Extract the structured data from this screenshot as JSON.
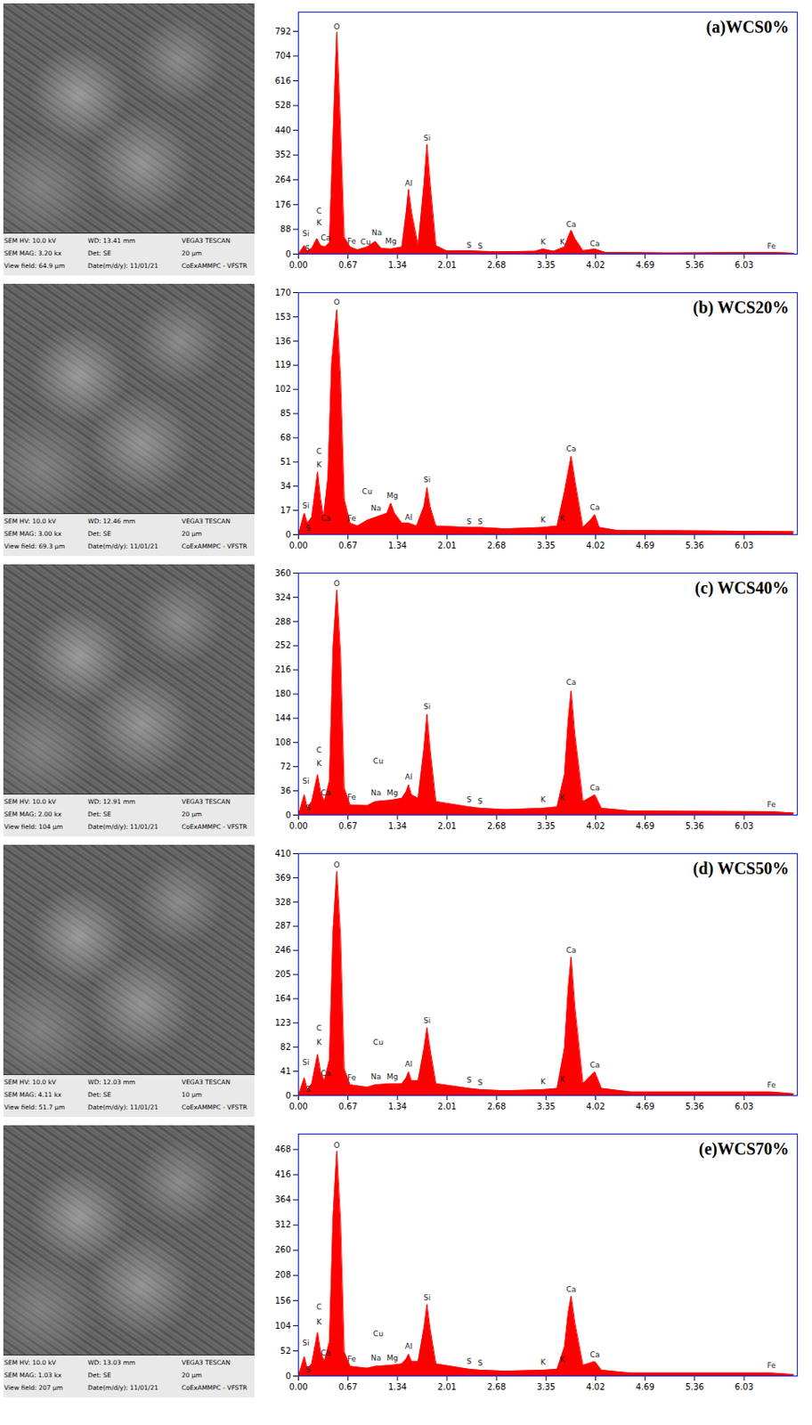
{
  "chart_data": [
    {
      "type": "area",
      "title": "(a)WCS0%",
      "color": "#ff0000",
      "xlim": [
        0,
        6.75
      ],
      "xticks": [
        {
          "value": 0,
          "label": "0.00"
        },
        0.67,
        1.34,
        2.01,
        2.68,
        3.35,
        4.02,
        4.69,
        5.36,
        6.03
      ],
      "ylim": [
        0,
        860
      ],
      "yticks": [
        0,
        88,
        176,
        264,
        352,
        440,
        528,
        616,
        704,
        792
      ],
      "x": [
        0,
        0.08,
        0.12,
        0.18,
        0.25,
        0.3,
        0.36,
        0.42,
        0.48,
        0.52,
        0.56,
        0.62,
        0.7,
        0.8,
        0.93,
        1.04,
        1.12,
        1.25,
        1.4,
        1.46,
        1.49,
        1.53,
        1.62,
        1.7,
        1.74,
        1.78,
        1.86,
        2.0,
        2.31,
        2.46,
        2.7,
        3.2,
        3.31,
        3.45,
        3.6,
        3.65,
        3.69,
        3.74,
        3.85,
        4.01,
        4.15,
        5.0,
        6.4,
        6.7
      ],
      "values": [
        0,
        30,
        10,
        20,
        55,
        30,
        25,
        40,
        500,
        790,
        520,
        60,
        25,
        15,
        25,
        45,
        20,
        18,
        25,
        150,
        230,
        150,
        30,
        250,
        390,
        260,
        30,
        12,
        12,
        10,
        8,
        10,
        18,
        10,
        25,
        60,
        85,
        55,
        12,
        18,
        6,
        4,
        6,
        3
      ],
      "annotations": [
        {
          "text": "Si",
          "x": 0.1,
          "y": 60
        },
        {
          "text": "C",
          "x": 0.28,
          "y": 140
        },
        {
          "text": "K",
          "x": 0.28,
          "y": 100
        },
        {
          "text": "Ca",
          "x": 0.37,
          "y": 45
        },
        {
          "text": "S",
          "x": 0.12,
          "y": 8
        },
        {
          "text": "O",
          "x": 0.52,
          "y": 795
        },
        {
          "text": "Fe",
          "x": 0.72,
          "y": 35
        },
        {
          "text": "Cu",
          "x": 0.91,
          "y": 30
        },
        {
          "text": "Na",
          "x": 1.06,
          "y": 65
        },
        {
          "text": "Mg",
          "x": 1.25,
          "y": 35
        },
        {
          "text": "Al",
          "x": 1.49,
          "y": 240
        },
        {
          "text": "Si",
          "x": 1.74,
          "y": 400
        },
        {
          "text": "S",
          "x": 2.31,
          "y": 20
        },
        {
          "text": "S",
          "x": 2.46,
          "y": 15
        },
        {
          "text": "K",
          "x": 3.31,
          "y": 30
        },
        {
          "text": "K",
          "x": 3.57,
          "y": 30
        },
        {
          "text": "Ca",
          "x": 3.69,
          "y": 95
        },
        {
          "text": "Ca",
          "x": 4.01,
          "y": 25
        },
        {
          "text": "Fe",
          "x": 6.4,
          "y": 15
        }
      ]
    },
    {
      "type": "area",
      "title": "(b) WCS20%",
      "color": "#ff0000",
      "xlim": [
        0,
        6.75
      ],
      "xticks": [
        {
          "value": 0,
          "label": "0.00"
        },
        0.67,
        1.34,
        2.01,
        2.68,
        3.35,
        4.02,
        4.69,
        5.36,
        6.03
      ],
      "ylim": [
        0,
        170
      ],
      "yticks": [
        0,
        17,
        34,
        51,
        68,
        85,
        102,
        119,
        136,
        153,
        170
      ],
      "x": [
        0,
        0.08,
        0.12,
        0.18,
        0.26,
        0.3,
        0.34,
        0.4,
        0.45,
        0.52,
        0.57,
        0.62,
        0.7,
        0.8,
        0.93,
        1.04,
        1.2,
        1.25,
        1.3,
        1.4,
        1.49,
        1.6,
        1.7,
        1.74,
        1.78,
        1.86,
        2.31,
        2.46,
        2.8,
        3.31,
        3.5,
        3.6,
        3.69,
        3.75,
        3.85,
        3.95,
        4.01,
        4.07,
        4.3,
        6.7
      ],
      "values": [
        0,
        15,
        8,
        12,
        44,
        25,
        12,
        40,
        120,
        158,
        110,
        25,
        8,
        6,
        10,
        12,
        15,
        22,
        15,
        8,
        8,
        6,
        20,
        33,
        20,
        6,
        5,
        5,
        4,
        5,
        6,
        30,
        55,
        35,
        5,
        10,
        14,
        5,
        3,
        2
      ],
      "annotations": [
        {
          "text": "Si",
          "x": 0.1,
          "y": 18
        },
        {
          "text": "C",
          "x": 0.28,
          "y": 56
        },
        {
          "text": "K",
          "x": 0.28,
          "y": 47
        },
        {
          "text": "Ca",
          "x": 0.37,
          "y": 9
        },
        {
          "text": "S",
          "x": 0.13,
          "y": 2
        },
        {
          "text": "O",
          "x": 0.52,
          "y": 161
        },
        {
          "text": "Fe",
          "x": 0.72,
          "y": 9
        },
        {
          "text": "Cu",
          "x": 0.93,
          "y": 28
        },
        {
          "text": "Na",
          "x": 1.05,
          "y": 16
        },
        {
          "text": "Mg",
          "x": 1.27,
          "y": 25
        },
        {
          "text": "Al",
          "x": 1.49,
          "y": 10
        },
        {
          "text": "Si",
          "x": 1.74,
          "y": 36
        },
        {
          "text": "S",
          "x": 2.31,
          "y": 7
        },
        {
          "text": "S",
          "x": 2.46,
          "y": 7
        },
        {
          "text": "K",
          "x": 3.31,
          "y": 8
        },
        {
          "text": "K",
          "x": 3.57,
          "y": 9
        },
        {
          "text": "Ca",
          "x": 3.69,
          "y": 58
        },
        {
          "text": "Ca",
          "x": 4.01,
          "y": 17
        }
      ]
    },
    {
      "type": "area",
      "title": "(c) WCS40%",
      "color": "#ff0000",
      "xlim": [
        0,
        6.75
      ],
      "xticks": [
        {
          "value": 0,
          "label": "0.00"
        },
        0.67,
        1.34,
        2.01,
        2.68,
        3.35,
        4.02,
        4.69,
        5.36,
        6.03
      ],
      "ylim": [
        0,
        360
      ],
      "yticks": [
        0,
        36,
        72,
        108,
        144,
        180,
        216,
        252,
        288,
        324,
        360
      ],
      "x": [
        0,
        0.08,
        0.12,
        0.18,
        0.26,
        0.3,
        0.35,
        0.42,
        0.47,
        0.52,
        0.57,
        0.62,
        0.7,
        0.93,
        1.04,
        1.25,
        1.4,
        1.46,
        1.49,
        1.53,
        1.62,
        1.7,
        1.74,
        1.78,
        1.86,
        2.31,
        2.46,
        2.8,
        3.31,
        3.5,
        3.6,
        3.65,
        3.69,
        3.74,
        3.85,
        4.01,
        4.1,
        4.5,
        6.4,
        6.7
      ],
      "values": [
        0,
        30,
        10,
        20,
        60,
        35,
        20,
        50,
        250,
        335,
        240,
        40,
        15,
        14,
        20,
        22,
        25,
        35,
        45,
        30,
        25,
        100,
        150,
        100,
        20,
        12,
        10,
        8,
        10,
        12,
        60,
        140,
        185,
        120,
        20,
        30,
        10,
        6,
        5,
        3
      ],
      "annotations": [
        {
          "text": "Si",
          "x": 0.1,
          "y": 45
        },
        {
          "text": "C",
          "x": 0.28,
          "y": 92
        },
        {
          "text": "K",
          "x": 0.28,
          "y": 72
        },
        {
          "text": "Ca",
          "x": 0.37,
          "y": 28
        },
        {
          "text": "S",
          "x": 0.13,
          "y": 5
        },
        {
          "text": "O",
          "x": 0.52,
          "y": 340
        },
        {
          "text": "Fe",
          "x": 0.72,
          "y": 22
        },
        {
          "text": "Cu",
          "x": 1.08,
          "y": 75
        },
        {
          "text": "Na",
          "x": 1.05,
          "y": 28
        },
        {
          "text": "Mg",
          "x": 1.27,
          "y": 28
        },
        {
          "text": "Al",
          "x": 1.49,
          "y": 52
        },
        {
          "text": "Si",
          "x": 1.74,
          "y": 156
        },
        {
          "text": "S",
          "x": 2.31,
          "y": 18
        },
        {
          "text": "S",
          "x": 2.46,
          "y": 15
        },
        {
          "text": "K",
          "x": 3.31,
          "y": 18
        },
        {
          "text": "K",
          "x": 3.57,
          "y": 20
        },
        {
          "text": "Ca",
          "x": 3.69,
          "y": 192
        },
        {
          "text": "Ca",
          "x": 4.01,
          "y": 36
        },
        {
          "text": "Fe",
          "x": 6.4,
          "y": 10
        }
      ]
    },
    {
      "type": "area",
      "title": "(d) WCS50%",
      "color": "#ff0000",
      "xlim": [
        0,
        6.75
      ],
      "xticks": [
        {
          "value": 0,
          "label": "0.00"
        },
        0.67,
        1.34,
        2.01,
        2.68,
        3.35,
        4.02,
        4.69,
        5.36,
        6.03
      ],
      "ylim": [
        0,
        410
      ],
      "yticks": [
        0,
        41,
        82,
        123,
        164,
        205,
        246,
        287,
        328,
        369,
        410
      ],
      "x": [
        0,
        0.08,
        0.12,
        0.18,
        0.26,
        0.3,
        0.35,
        0.42,
        0.47,
        0.52,
        0.57,
        0.62,
        0.7,
        0.93,
        1.04,
        1.25,
        1.4,
        1.46,
        1.49,
        1.53,
        1.62,
        1.7,
        1.74,
        1.78,
        1.86,
        2.31,
        2.46,
        2.8,
        3.31,
        3.5,
        3.6,
        3.65,
        3.69,
        3.74,
        3.85,
        4.01,
        4.1,
        4.5,
        6.4,
        6.7
      ],
      "values": [
        0,
        30,
        10,
        20,
        70,
        40,
        25,
        60,
        280,
        380,
        270,
        45,
        18,
        14,
        18,
        20,
        20,
        30,
        40,
        25,
        25,
        80,
        115,
        80,
        20,
        12,
        10,
        8,
        10,
        12,
        80,
        180,
        235,
        150,
        20,
        40,
        12,
        6,
        6,
        3
      ],
      "annotations": [
        {
          "text": "Si",
          "x": 0.1,
          "y": 50
        },
        {
          "text": "C",
          "x": 0.28,
          "y": 108
        },
        {
          "text": "K",
          "x": 0.28,
          "y": 84
        },
        {
          "text": "Ca",
          "x": 0.37,
          "y": 32
        },
        {
          "text": "S",
          "x": 0.13,
          "y": 5
        },
        {
          "text": "O",
          "x": 0.52,
          "y": 385
        },
        {
          "text": "Fe",
          "x": 0.72,
          "y": 25
        },
        {
          "text": "Cu",
          "x": 1.08,
          "y": 85
        },
        {
          "text": "Na",
          "x": 1.05,
          "y": 26
        },
        {
          "text": "Mg",
          "x": 1.27,
          "y": 26
        },
        {
          "text": "Al",
          "x": 1.49,
          "y": 48
        },
        {
          "text": "Si",
          "x": 1.74,
          "y": 121
        },
        {
          "text": "S",
          "x": 2.31,
          "y": 20
        },
        {
          "text": "S",
          "x": 2.46,
          "y": 16
        },
        {
          "text": "K",
          "x": 3.31,
          "y": 18
        },
        {
          "text": "K",
          "x": 3.57,
          "y": 22
        },
        {
          "text": "Ca",
          "x": 3.69,
          "y": 241
        },
        {
          "text": "Ca",
          "x": 4.01,
          "y": 46
        },
        {
          "text": "Fe",
          "x": 6.4,
          "y": 12
        }
      ]
    },
    {
      "type": "area",
      "title": "(e)WCS70%",
      "color": "#ff0000",
      "xlim": [
        0,
        6.75
      ],
      "xticks": [
        {
          "value": 0,
          "label": "0.00"
        },
        0.67,
        1.34,
        2.01,
        2.68,
        3.35,
        4.02,
        4.69,
        5.36,
        6.03
      ],
      "ylim": [
        0,
        500
      ],
      "yticks": [
        0,
        52,
        104,
        156,
        208,
        260,
        312,
        364,
        416,
        468
      ],
      "x": [
        0,
        0.08,
        0.12,
        0.18,
        0.26,
        0.3,
        0.35,
        0.42,
        0.47,
        0.52,
        0.57,
        0.62,
        0.7,
        0.93,
        1.04,
        1.25,
        1.4,
        1.46,
        1.49,
        1.53,
        1.62,
        1.7,
        1.74,
        1.78,
        1.86,
        2.31,
        2.46,
        2.8,
        3.31,
        3.5,
        3.6,
        3.65,
        3.69,
        3.74,
        3.85,
        4.01,
        4.1,
        4.5,
        6.4,
        6.7
      ],
      "values": [
        0,
        40,
        15,
        25,
        90,
        50,
        30,
        70,
        330,
        465,
        320,
        50,
        20,
        16,
        20,
        22,
        25,
        35,
        45,
        30,
        30,
        100,
        148,
        100,
        25,
        14,
        12,
        10,
        12,
        14,
        60,
        130,
        165,
        110,
        22,
        30,
        12,
        6,
        6,
        3
      ],
      "annotations": [
        {
          "text": "Si",
          "x": 0.1,
          "y": 62
        },
        {
          "text": "C",
          "x": 0.28,
          "y": 135
        },
        {
          "text": "K",
          "x": 0.28,
          "y": 104
        },
        {
          "text": "Ca",
          "x": 0.37,
          "y": 40
        },
        {
          "text": "S",
          "x": 0.13,
          "y": 6
        },
        {
          "text": "O",
          "x": 0.52,
          "y": 470
        },
        {
          "text": "Fe",
          "x": 0.72,
          "y": 28
        },
        {
          "text": "Cu",
          "x": 1.08,
          "y": 80
        },
        {
          "text": "Na",
          "x": 1.05,
          "y": 30
        },
        {
          "text": "Mg",
          "x": 1.27,
          "y": 30
        },
        {
          "text": "Al",
          "x": 1.49,
          "y": 55
        },
        {
          "text": "Si",
          "x": 1.74,
          "y": 155
        },
        {
          "text": "S",
          "x": 2.31,
          "y": 24
        },
        {
          "text": "S",
          "x": 2.46,
          "y": 20
        },
        {
          "text": "K",
          "x": 3.31,
          "y": 22
        },
        {
          "text": "K",
          "x": 3.57,
          "y": 26
        },
        {
          "text": "Ca",
          "x": 3.69,
          "y": 172
        },
        {
          "text": "Ca",
          "x": 4.01,
          "y": 38
        },
        {
          "text": "Fe",
          "x": 6.4,
          "y": 14
        }
      ]
    }
  ],
  "micrographs": [
    {
      "info": [
        [
          "SEM HV: 10.0 kV",
          "WD: 13.41 mm",
          "VEGA3 TESCAN"
        ],
        [
          "SEM MAG: 3.20 kx",
          "Det: SE",
          "20 µm"
        ],
        [
          "View field: 64.9 µm",
          "Date(m/d/y): 11/01/21",
          "CoExAMMPC - VFSTR"
        ]
      ]
    },
    {
      "info": [
        [
          "SEM HV: 10.0 kV",
          "WD: 12.46 mm",
          "VEGA3 TESCAN"
        ],
        [
          "SEM MAG: 3.00 kx",
          "Det: SE",
          "20 µm"
        ],
        [
          "View field: 69.3 µm",
          "Date(m/d/y): 11/01/21",
          "CoExAMMPC - VFSTR"
        ]
      ]
    },
    {
      "info": [
        [
          "SEM HV: 10.0 kV",
          "WD: 12.91 mm",
          "VEGA3 TESCAN"
        ],
        [
          "SEM MAG: 2.00 kx",
          "Det: SE",
          "20 µm"
        ],
        [
          "View field: 104 µm",
          "Date(m/d/y): 11/01/21",
          "CoExAMMPC - VFSTR"
        ]
      ]
    },
    {
      "info": [
        [
          "SEM HV: 10.0 kV",
          "WD: 12.03 mm",
          "VEGA3 TESCAN"
        ],
        [
          "SEM MAG: 4.11 kx",
          "Det: SE",
          "10 µm"
        ],
        [
          "View field: 51.7 µm",
          "Date(m/d/y): 11/01/21",
          "CoExAMMPC - VFSTR"
        ]
      ]
    },
    {
      "info": [
        [
          "SEM HV: 10.0 kV",
          "WD: 13.03 mm",
          "VEGA3 TESCAN"
        ],
        [
          "SEM MAG: 1.03 kx",
          "Det: SE",
          "20 µm"
        ],
        [
          "View field: 207 µm",
          "Date(m/d/y): 11/01/21",
          "CoExAMMPC - VFSTR"
        ]
      ]
    }
  ]
}
